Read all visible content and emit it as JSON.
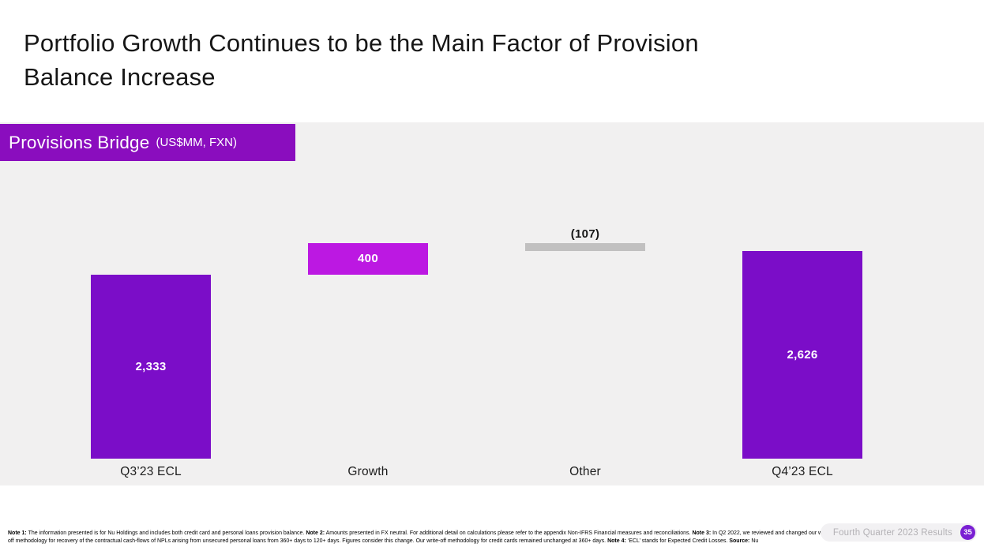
{
  "slide": {
    "title_lines": [
      "Portfolio Growth Continues to be the Main Factor of Provision",
      "Balance Increase"
    ],
    "banner": {
      "title": "Provisions Bridge",
      "subtitle": "(US$MM, FXN)"
    },
    "footer": {
      "notes": [
        {
          "label": "Note 1:",
          "text": "The information presented is for Nu Holdings and includes both credit card and personal loans provision balance."
        },
        {
          "label": "Note 2:",
          "text": "Amounts presented in FX neutral. For additional detail on calculations please refer to the appendix Non-IFRS Financial measures and reconciliations."
        },
        {
          "label": "Note 3:",
          "text": "In Q2 2022, we reviewed and changed our write-off methodology for recovery of the contractual cash-flows of NPLs arising from unsecured personal loans from 360+ days to 120+ days. Figures consider this change. Our write-off methodology for credit cards remained unchanged at 360+ days."
        },
        {
          "label": "Note 4:",
          "text": "‘ECL’ stands for Expected Credit Losses."
        },
        {
          "label": "Source:",
          "text": "Nu"
        }
      ],
      "results_label": "Fourth Quarter 2023 Results",
      "page_number": "35"
    }
  },
  "chart_data": {
    "type": "bar",
    "subtype": "waterfall",
    "title": "Provisions Bridge",
    "unit": "US$MM, FXN",
    "categories": [
      "Q3’23 ECL",
      "Growth",
      "Other",
      "Q4’23 ECL"
    ],
    "values": [
      2333,
      400,
      -107,
      2626
    ],
    "value_labels": [
      "2,333",
      "400",
      "(107)",
      "2,626"
    ],
    "bar_types": [
      "total",
      "increase",
      "decrease",
      "total"
    ],
    "colors": {
      "total": "#7B0DC8",
      "increase": "#BC18E2",
      "decrease": "#C1C0C0"
    },
    "ylim": [
      0,
      2900
    ],
    "grid": false,
    "legend": false
  },
  "colors": {
    "banner_bg": "#8A0DBE",
    "panel_bg": "#F1F0F0",
    "accent_circle": "#7A1FD3",
    "title_text": "#161616"
  }
}
